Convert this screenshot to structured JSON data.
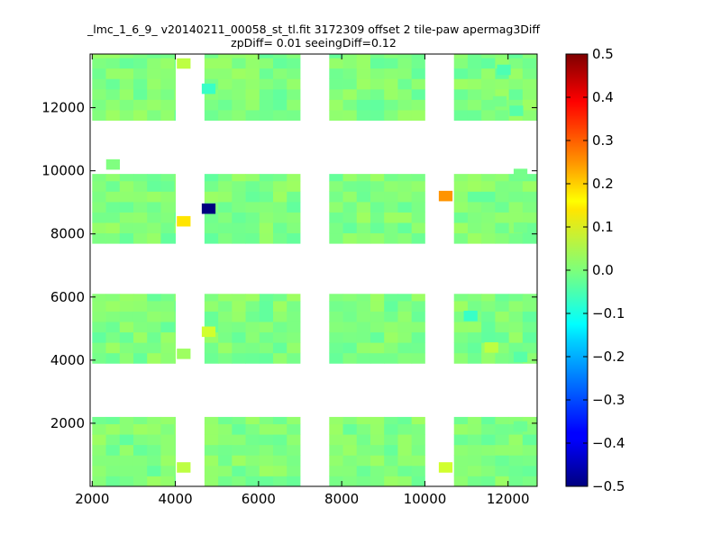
{
  "chart_data": {
    "type": "heatmap",
    "title": "_lmc_1_6_9_ v20140211_00058_st_tl.fit 3172309 offset 2 tile-paw apermag3Diff",
    "subtitle": "zpDiff= 0.01 seeingDiff=0.12",
    "xlabel": "",
    "ylabel": "",
    "xlim": [
      1950,
      12700
    ],
    "ylim": [
      0,
      13700
    ],
    "x_ticks": [
      "2000",
      "4000",
      "6000",
      "8000",
      "10000",
      "12000"
    ],
    "y_ticks": [
      "2000",
      "4000",
      "6000",
      "8000",
      "10000",
      "12000"
    ],
    "colorbar": {
      "colormap": "jet",
      "range": [
        -0.5,
        0.5
      ],
      "ticks": [
        "0.5",
        "0.4",
        "0.3",
        "0.2",
        "0.1",
        "0.0",
        "−0.1",
        "−0.2",
        "−0.3",
        "−0.4",
        "−0.5"
      ]
    },
    "cell_size": [
      330,
      330
    ],
    "column_groups": [
      [
        2000,
        4000
      ],
      [
        4700,
        7000
      ],
      [
        7700,
        10000
      ],
      [
        10700,
        12700
      ]
    ],
    "row_groups": [
      [
        0,
        2200
      ],
      [
        3900,
        6100
      ],
      [
        7700,
        9900
      ],
      [
        11600,
        13800
      ]
    ],
    "base_value": 0.0,
    "cells": [
      {
        "x": 2500,
        "y": 10200,
        "v": 0.0
      },
      {
        "x": 4200,
        "y": 8400,
        "v": 0.15
      },
      {
        "x": 4800,
        "y": 8800,
        "v": -0.5
      },
      {
        "x": 10500,
        "y": 9200,
        "v": 0.23
      },
      {
        "x": 4200,
        "y": 13400,
        "v": 0.06
      },
      {
        "x": 4800,
        "y": 12600,
        "v": -0.07
      },
      {
        "x": 4200,
        "y": 4200,
        "v": 0.03
      },
      {
        "x": 4800,
        "y": 4900,
        "v": 0.08
      },
      {
        "x": 4200,
        "y": 600,
        "v": 0.06
      },
      {
        "x": 10500,
        "y": 600,
        "v": 0.08
      },
      {
        "x": 11100,
        "y": 5400,
        "v": -0.07
      },
      {
        "x": 11600,
        "y": 4400,
        "v": 0.06
      },
      {
        "x": 12300,
        "y": 1900,
        "v": -0.02
      },
      {
        "x": 12300,
        "y": 4100,
        "v": -0.04
      },
      {
        "x": 12300,
        "y": 9900,
        "v": -0.01
      },
      {
        "x": 12300,
        "y": 8200,
        "v": -0.01
      },
      {
        "x": 11800,
        "y": 12200,
        "v": -0.01
      },
      {
        "x": 12200,
        "y": 11900,
        "v": -0.04
      },
      {
        "x": 11900,
        "y": 13200,
        "v": -0.05
      }
    ]
  }
}
